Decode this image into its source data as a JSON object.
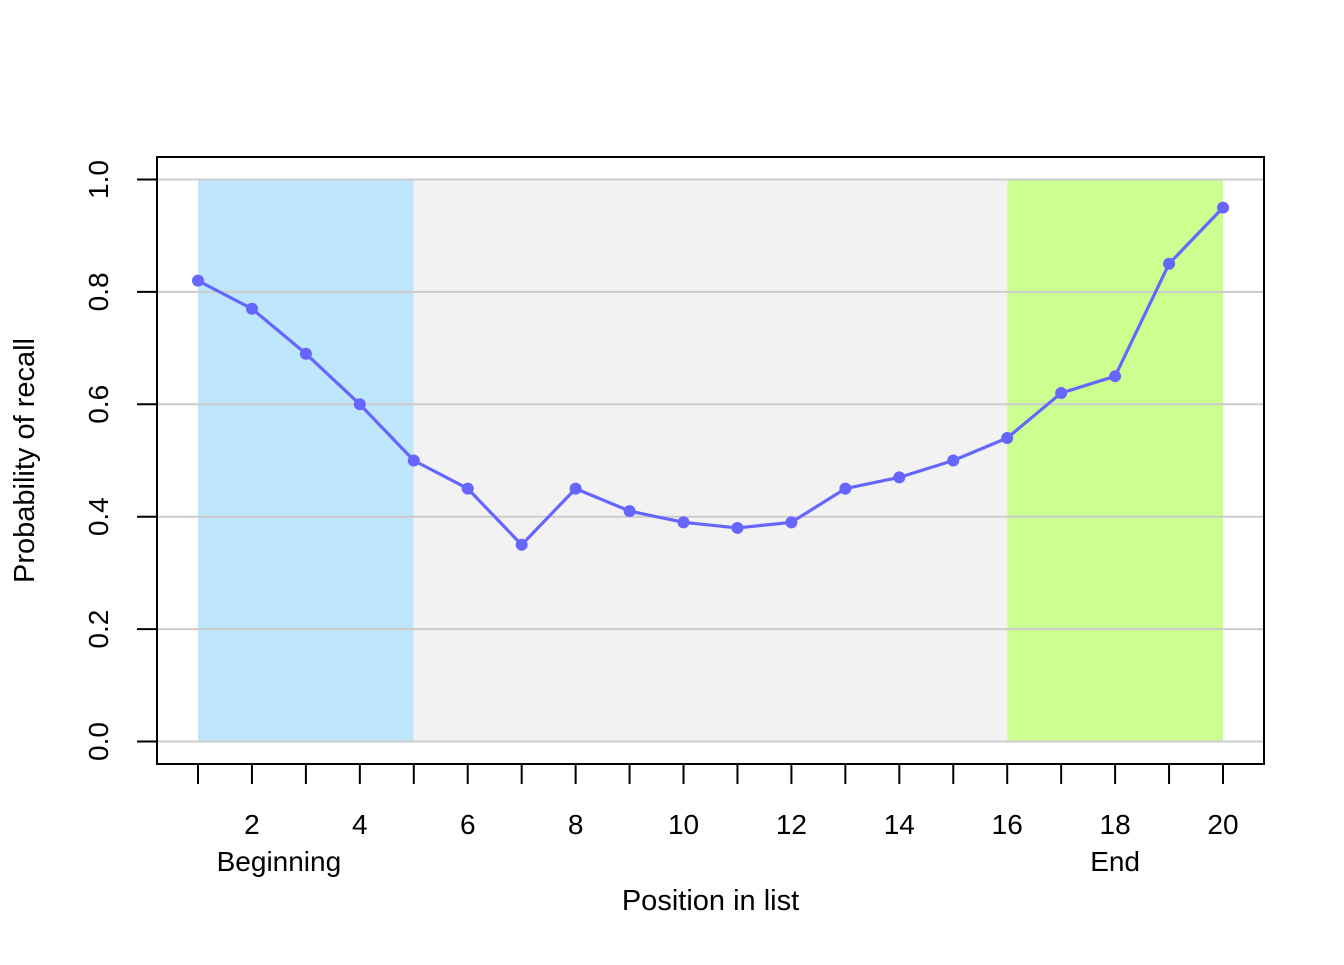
{
  "chart_data": {
    "type": "line",
    "title": "",
    "xlabel": "Position in list",
    "ylabel": "Probability of recall",
    "xlim": [
      0.24,
      20.76
    ],
    "ylim": [
      -0.04,
      1.04
    ],
    "x_ticks": [
      1,
      2,
      3,
      4,
      5,
      6,
      7,
      8,
      9,
      10,
      11,
      12,
      13,
      14,
      15,
      16,
      17,
      18,
      19,
      20
    ],
    "x_tick_labels": [
      {
        "x": 2,
        "label": "2"
      },
      {
        "x": 4,
        "label": "4"
      },
      {
        "x": 6,
        "label": "6"
      },
      {
        "x": 8,
        "label": "8"
      },
      {
        "x": 10,
        "label": "10"
      },
      {
        "x": 12,
        "label": "12"
      },
      {
        "x": 14,
        "label": "14"
      },
      {
        "x": 16,
        "label": "16"
      },
      {
        "x": 18,
        "label": "18"
      },
      {
        "x": 20,
        "label": "20"
      }
    ],
    "y_ticks": [
      {
        "y": 0.0,
        "label": "0.0"
      },
      {
        "y": 0.2,
        "label": "0.2"
      },
      {
        "y": 0.4,
        "label": "0.4"
      },
      {
        "y": 0.6,
        "label": "0.6"
      },
      {
        "y": 0.8,
        "label": "0.8"
      },
      {
        "y": 1.0,
        "label": "1.0"
      }
    ],
    "grid": "horizontal",
    "regions": [
      {
        "name": "beginning",
        "x_from": 1,
        "x_to": 5,
        "y_from": 0,
        "y_to": 1,
        "color": "#bee6fd"
      },
      {
        "name": "middle",
        "x_from": 5,
        "x_to": 16,
        "y_from": 0,
        "y_to": 1,
        "color": "#f2f2f2"
      },
      {
        "name": "end",
        "x_from": 16,
        "x_to": 20,
        "y_from": 0,
        "y_to": 1,
        "color": "#ccff8f"
      }
    ],
    "region_labels": [
      {
        "x": 2.5,
        "label": "Beginning"
      },
      {
        "x": 18,
        "label": "End"
      }
    ],
    "series": [
      {
        "color": "#6666ff",
        "x": [
          1,
          2,
          3,
          4,
          5,
          6,
          7,
          8,
          9,
          10,
          11,
          12,
          13,
          14,
          15,
          16,
          17,
          18,
          19,
          20
        ],
        "y": [
          0.82,
          0.77,
          0.69,
          0.6,
          0.5,
          0.45,
          0.35,
          0.45,
          0.41,
          0.39,
          0.38,
          0.39,
          0.45,
          0.47,
          0.5,
          0.54,
          0.62,
          0.65,
          0.85,
          0.95
        ]
      }
    ],
    "colors": {
      "grid": "#cccccc",
      "axis": "#000000",
      "line": "#6666ff"
    }
  }
}
